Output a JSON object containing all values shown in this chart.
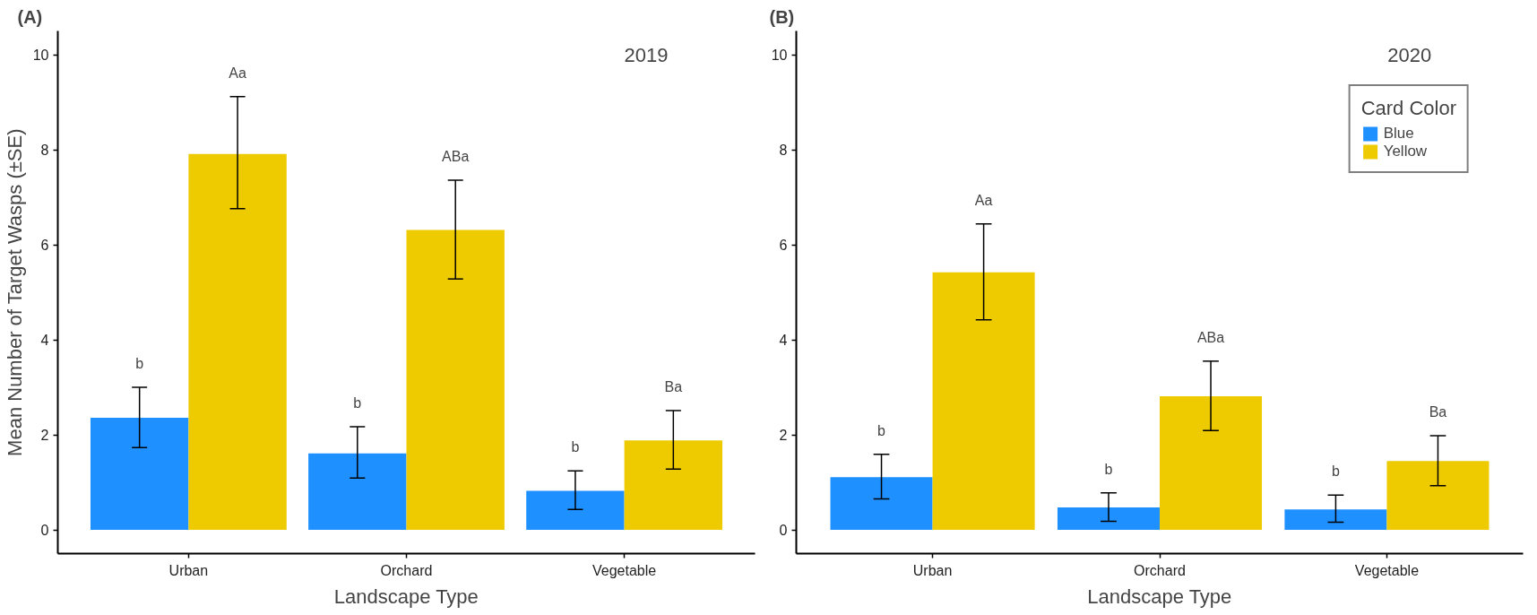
{
  "chart_data": [
    {
      "type": "bar",
      "title": "(A)",
      "subtitle": "2019",
      "xlabel": "Landscape Type",
      "ylabel": "Mean Number of Target Wasps (±SE)",
      "categories": [
        "Urban",
        "Orchard",
        "Vegetable"
      ],
      "series": [
        {
          "color": "#1e90ff",
          "values": [
            2.36,
            1.61,
            0.82
          ],
          "errors": [
            [
              1.73,
              3.0
            ],
            [
              1.09,
              2.17
            ],
            [
              0.43,
              1.24
            ]
          ]
        },
        {
          "color": "#eecb00",
          "values": [
            7.91,
            6.31,
            1.88
          ],
          "errors": [
            [
              6.76,
              9.12
            ],
            [
              5.28,
              7.36
            ],
            [
              1.28,
              2.51
            ]
          ]
        }
      ],
      "ylim": [
        -0.5,
        10.5
      ],
      "yticks": [
        0,
        2,
        4,
        6,
        8,
        10
      ],
      "grid": false,
      "annotations": [
        "b",
        "Aa",
        "b",
        "ABa",
        "b",
        "Ba"
      ]
    },
    {
      "type": "bar",
      "title": "(B)",
      "subtitle": "2020",
      "xlabel": "Landscape Type",
      "legend_title": "Card Color",
      "categories": [
        "Urban",
        "Orchard",
        "Vegetable"
      ],
      "series": [
        {
          "name": "Blue",
          "color": "#1e90ff",
          "values": [
            1.11,
            0.47,
            0.43
          ],
          "errors": [
            [
              0.65,
              1.59
            ],
            [
              0.18,
              0.78
            ],
            [
              0.16,
              0.73
            ]
          ]
        },
        {
          "name": "Yellow",
          "color": "#eecb00",
          "values": [
            5.42,
            2.81,
            1.45
          ],
          "errors": [
            [
              4.42,
              6.44
            ],
            [
              2.09,
              3.55
            ],
            [
              0.93,
              1.98
            ]
          ]
        }
      ],
      "ylim": [
        -0.5,
        10.5
      ],
      "yticks": [
        0,
        2,
        4,
        6,
        8,
        10
      ],
      "grid": false,
      "legend": "top right",
      "annotations": [
        "b",
        "Aa",
        "b",
        "ABa",
        "b",
        "Ba"
      ]
    }
  ]
}
